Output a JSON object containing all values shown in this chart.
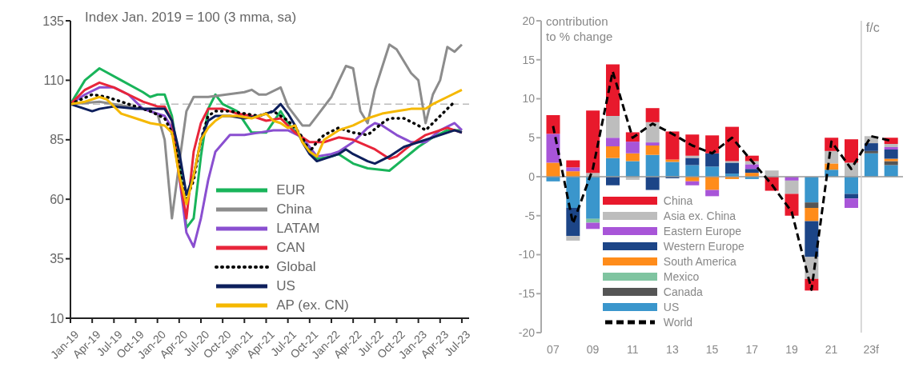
{
  "chart_data": [
    {
      "type": "line",
      "title": "Index Jan. 2019 = 100 (3 mma, sa)",
      "xlim": [
        "2019-01",
        "2023-08"
      ],
      "xticks": [
        {
          "value": "2019-01",
          "label": "Jan-19"
        },
        {
          "value": "2019-04",
          "label": "Apr-19"
        },
        {
          "value": "2019-07",
          "label": "Jul-19"
        },
        {
          "value": "2019-10",
          "label": "Oct-19"
        },
        {
          "value": "2020-01",
          "label": "Jan-20"
        },
        {
          "value": "2020-04",
          "label": "Apr-20"
        },
        {
          "value": "2020-07",
          "label": "Jul-20"
        },
        {
          "value": "2020-10",
          "label": "Oct-20"
        },
        {
          "value": "2021-01",
          "label": "Jan-21"
        },
        {
          "value": "2021-04",
          "label": "Apr-21"
        },
        {
          "value": "2021-07",
          "label": "Jul-21"
        },
        {
          "value": "2021-10",
          "label": "Oct-21"
        },
        {
          "value": "2022-01",
          "label": "Jan-22"
        },
        {
          "value": "2022-04",
          "label": "Apr-22"
        },
        {
          "value": "2022-07",
          "label": "Jul-22"
        },
        {
          "value": "2022-10",
          "label": "Oct-22"
        },
        {
          "value": "2023-01",
          "label": "Jan-23"
        },
        {
          "value": "2023-04",
          "label": "Apr-23"
        },
        {
          "value": "2023-07",
          "label": "Jul-23"
        }
      ],
      "ylim": [
        10,
        135
      ],
      "yticks": [
        10,
        35,
        60,
        85,
        110,
        135
      ],
      "legend": "bottom",
      "ref_lines": [
        {
          "axis": "y",
          "value": 100,
          "color": "#bbbbbb",
          "line_style": "dashed"
        }
      ],
      "series": [
        {
          "name": "EUR",
          "color": "#19b45a",
          "x": [
            "2019-01",
            "2019-03",
            "2019-05",
            "2019-08",
            "2019-11",
            "2019-12",
            "2020-01",
            "2020-02",
            "2020-03",
            "2020-04",
            "2020-05",
            "2020-06",
            "2020-07",
            "2020-08",
            "2020-09",
            "2020-10",
            "2020-12",
            "2021-02",
            "2021-04",
            "2021-06",
            "2021-07",
            "2021-09",
            "2021-11",
            "2022-01",
            "2022-02",
            "2022-04",
            "2022-06",
            "2022-09",
            "2022-11",
            "2023-01",
            "2023-03",
            "2023-05",
            "2023-07"
          ],
          "values": [
            100,
            110,
            115,
            110,
            105,
            103,
            104,
            104,
            95,
            75,
            48,
            52,
            78,
            98,
            104,
            100,
            97,
            88,
            88,
            97,
            92,
            85,
            77,
            78,
            79,
            75,
            73,
            72,
            77,
            82,
            86,
            89,
            89
          ]
        },
        {
          "name": "China",
          "color": "#8c8c8c",
          "x": [
            "2019-01",
            "2019-05",
            "2019-11",
            "2020-01",
            "2020-02",
            "2020-03",
            "2020-04",
            "2020-05",
            "2020-06",
            "2020-08",
            "2021-01",
            "2021-02",
            "2021-03",
            "2021-04",
            "2021-06",
            "2021-07",
            "2021-09",
            "2021-10",
            "2021-11",
            "2022-01",
            "2022-03",
            "2022-04",
            "2022-05",
            "2022-06",
            "2022-07",
            "2022-09",
            "2022-10",
            "2022-12",
            "2023-01",
            "2023-02",
            "2023-03",
            "2023-04",
            "2023-05",
            "2023-06",
            "2023-07"
          ],
          "values": [
            100,
            101,
            98,
            96,
            85,
            52,
            75,
            97,
            103,
            103,
            105,
            106,
            104,
            104,
            107,
            99,
            91,
            91,
            95,
            103,
            116,
            115,
            97,
            92,
            106,
            125,
            123,
            113,
            110,
            92,
            104,
            110,
            124,
            122,
            125
          ]
        },
        {
          "name": "LATAM",
          "color": "#8a4fd0",
          "x": [
            "2019-01",
            "2019-03",
            "2019-05",
            "2019-07",
            "2019-09",
            "2019-11",
            "2020-01",
            "2020-02",
            "2020-03",
            "2020-04",
            "2020-05",
            "2020-06",
            "2020-07",
            "2020-08",
            "2020-09",
            "2020-11",
            "2021-01",
            "2021-03",
            "2021-05",
            "2021-07",
            "2021-09",
            "2021-11",
            "2022-01",
            "2022-02",
            "2022-04",
            "2022-06",
            "2022-07",
            "2022-08",
            "2022-10",
            "2022-12",
            "2023-02",
            "2023-04",
            "2023-06",
            "2023-07"
          ],
          "values": [
            100,
            104,
            107,
            107,
            104,
            98,
            96,
            95,
            90,
            70,
            46,
            40,
            52,
            68,
            80,
            87,
            87,
            88,
            89,
            89,
            86,
            78,
            79,
            80,
            84,
            90,
            92,
            91,
            87,
            84,
            84,
            89,
            92,
            89
          ]
        },
        {
          "name": "CAN",
          "color": "#e8253a",
          "x": [
            "2019-01",
            "2019-03",
            "2019-05",
            "2019-07",
            "2019-09",
            "2019-11",
            "2020-01",
            "2020-02",
            "2020-03",
            "2020-04",
            "2020-05",
            "2020-06",
            "2020-07",
            "2020-08",
            "2020-10",
            "2020-12",
            "2021-02",
            "2021-04",
            "2021-06",
            "2021-08",
            "2021-10",
            "2021-12",
            "2022-02",
            "2022-04",
            "2022-07",
            "2022-09",
            "2022-10",
            "2022-12",
            "2023-02",
            "2023-05",
            "2023-07"
          ],
          "values": [
            100,
            106,
            109,
            107,
            104,
            101,
            99,
            99,
            93,
            70,
            52,
            80,
            92,
            98,
            98,
            96,
            95,
            93,
            94,
            88,
            84,
            84,
            86,
            85,
            81,
            77,
            78,
            83,
            87,
            90,
            88
          ]
        },
        {
          "name": "Global",
          "color": "#000000",
          "line_style": "dotted",
          "x": [
            "2019-01",
            "2019-04",
            "2019-06",
            "2019-09",
            "2019-12",
            "2020-02",
            "2020-03",
            "2020-04",
            "2020-05",
            "2020-06",
            "2020-07",
            "2020-08",
            "2020-09",
            "2020-11",
            "2021-01",
            "2021-03",
            "2021-05",
            "2021-07",
            "2021-08",
            "2021-09",
            "2021-10",
            "2021-11",
            "2021-12",
            "2022-02",
            "2022-04",
            "2022-06",
            "2022-08",
            "2022-09",
            "2022-11",
            "2023-01",
            "2023-02",
            "2023-04",
            "2023-06"
          ],
          "values": [
            100,
            104,
            103,
            100,
            97,
            94,
            88,
            75,
            60,
            68,
            85,
            95,
            97,
            97,
            96,
            95,
            97,
            93,
            90,
            86,
            80,
            84,
            87,
            90,
            88,
            87,
            92,
            94,
            94,
            91,
            89,
            95,
            101
          ]
        },
        {
          "name": "US",
          "color": "#0d1f5c",
          "x": [
            "2019-01",
            "2019-03",
            "2019-04",
            "2019-05",
            "2019-07",
            "2019-10",
            "2020-01",
            "2020-02",
            "2020-03",
            "2020-04",
            "2020-05",
            "2020-06",
            "2020-07",
            "2020-08",
            "2020-09",
            "2020-11",
            "2021-01",
            "2021-03",
            "2021-05",
            "2021-06",
            "2021-07",
            "2021-08",
            "2021-09",
            "2021-10",
            "2021-11",
            "2021-12",
            "2022-02",
            "2022-03",
            "2022-04",
            "2022-06",
            "2022-07",
            "2022-09",
            "2022-11",
            "2022-12",
            "2023-01",
            "2023-03",
            "2023-05",
            "2023-06",
            "2023-07"
          ],
          "values": [
            100,
            98,
            97,
            98,
            99,
            98,
            98,
            98,
            93,
            80,
            62,
            70,
            85,
            93,
            95,
            95,
            94,
            95,
            97,
            100,
            96,
            91,
            84,
            79,
            76,
            77,
            79,
            81,
            79,
            76,
            75,
            78,
            82,
            83,
            84,
            86,
            88,
            89,
            88
          ]
        },
        {
          "name": "AP (ex. CN)",
          "color": "#f5b800",
          "x": [
            "2019-01",
            "2019-03",
            "2019-05",
            "2019-06",
            "2019-08",
            "2019-10",
            "2019-12",
            "2020-02",
            "2020-03",
            "2020-04",
            "2020-05",
            "2020-06",
            "2020-07",
            "2020-08",
            "2020-09",
            "2020-10",
            "2020-12",
            "2021-02",
            "2021-03",
            "2021-04",
            "2021-05",
            "2021-06",
            "2021-07",
            "2021-08",
            "2021-09",
            "2021-10",
            "2021-11",
            "2021-12",
            "2022-02",
            "2022-04",
            "2022-06",
            "2022-08",
            "2022-10",
            "2022-12",
            "2023-02",
            "2023-03",
            "2023-05",
            "2023-07"
          ],
          "values": [
            100,
            101,
            103,
            102,
            96,
            94,
            92,
            91,
            88,
            70,
            58,
            70,
            85,
            90,
            93,
            95,
            95,
            94,
            95,
            96,
            93,
            92,
            90,
            91,
            84,
            80,
            78,
            85,
            89,
            91,
            94,
            96,
            97,
            98,
            98,
            100,
            103,
            106
          ]
        }
      ]
    },
    {
      "type": "bar",
      "stacked": true,
      "ylabel": "contribution to % change",
      "categories": [
        "07",
        null,
        "09",
        null,
        "11",
        null,
        "13",
        null,
        "15",
        null,
        "17",
        null,
        "19",
        null,
        "21",
        null,
        "23f",
        null
      ],
      "ylim": [
        -20,
        20
      ],
      "yticks": [
        -20,
        -15,
        -10,
        -5,
        0,
        5,
        10,
        15,
        20
      ],
      "legend": "bottom left",
      "ref_lines": [
        {
          "axis": "y",
          "value": 0,
          "color": "#999999"
        },
        {
          "axis": "x",
          "value": "23f",
          "label": "f/c",
          "color": "#cccccc"
        }
      ],
      "series": [
        {
          "name": "US",
          "color": "#3a96cc",
          "values": [
            -0.6,
            -4.0,
            -5.4,
            2.4,
            2.0,
            2.8,
            1.9,
            1.5,
            1.3,
            0.4,
            -0.3,
            null,
            null,
            -3.3,
            0.9,
            -2.2,
            3.0,
            1.5
          ]
        },
        {
          "name": "Canada",
          "color": "#555555",
          "values": [
            null,
            null,
            null,
            null,
            null,
            null,
            null,
            null,
            null,
            null,
            null,
            null,
            null,
            -0.7,
            null,
            null,
            0.3,
            0.5
          ]
        },
        {
          "name": "Mexico",
          "color": "#7fc4a0",
          "values": [
            null,
            null,
            -0.5,
            null,
            null,
            null,
            null,
            null,
            null,
            null,
            null,
            null,
            null,
            null,
            null,
            null,
            null,
            null
          ]
        },
        {
          "name": "South America",
          "color": "#ff8c1a",
          "values": [
            1.8,
            0.7,
            null,
            1.5,
            1.0,
            1.2,
            0.3,
            -0.6,
            -1.7,
            -0.3,
            0.5,
            null,
            null,
            -1.7,
            0.8,
            null,
            null,
            0.3
          ]
        },
        {
          "name": "Western Europe",
          "color": "#1c4587",
          "values": [
            null,
            -3.6,
            null,
            -1.1,
            null,
            -1.7,
            -0.2,
            0.9,
            1.7,
            1.4,
            0.5,
            null,
            null,
            -4.6,
            null,
            -0.6,
            1.0,
            1.2
          ]
        },
        {
          "name": "Eastern Europe",
          "color": "#a855d8",
          "values": [
            3.7,
            0.5,
            -0.8,
            1.1,
            1.5,
            0.4,
            null,
            -0.5,
            -0.8,
            null,
            0.6,
            null,
            -0.5,
            null,
            null,
            -1.2,
            null,
            0.3
          ]
        },
        {
          "name": "Asia ex. China",
          "color": "#bdbdbd",
          "values": [
            null,
            -0.6,
            0.5,
            2.8,
            -0.4,
            2.6,
            null,
            0.3,
            null,
            0.2,
            0.4,
            0.8,
            -1.7,
            -2.8,
            1.6,
            1.8,
            0.9,
            0.4
          ]
        },
        {
          "name": "China",
          "color": "#e8192c",
          "values": [
            2.4,
            0.9,
            8.0,
            6.6,
            1.2,
            1.8,
            3.6,
            2.7,
            2.3,
            4.4,
            0.7,
            -1.8,
            -2.8,
            -1.5,
            1.7,
            3.0,
            null,
            0.8
          ]
        },
        {
          "name": "World",
          "type": "line",
          "color": "#000000",
          "line_style": "dashed",
          "values": [
            6.5,
            -6,
            1,
            13.5,
            5,
            6.8,
            5.5,
            4,
            3,
            5,
            2,
            -1,
            -4.5,
            -14.5,
            4.5,
            1,
            5.2,
            4.6
          ]
        }
      ]
    }
  ]
}
